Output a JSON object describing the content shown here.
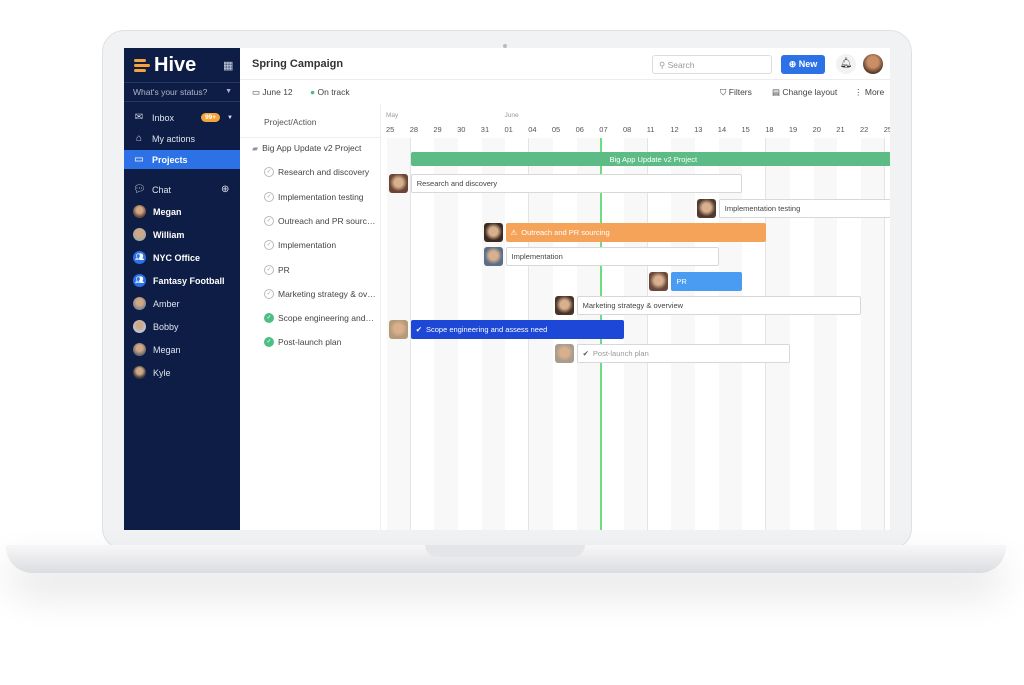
{
  "app": {
    "logo": "Hive",
    "status_placeholder": "What's your status?"
  },
  "sidebar": {
    "nav": [
      {
        "label": "Inbox",
        "icon": "mail-icon",
        "badge": "99+"
      },
      {
        "label": "My actions",
        "icon": "home-icon"
      },
      {
        "label": "Projects",
        "icon": "folder-icon",
        "active": true
      }
    ],
    "chat_label": "Chat",
    "chats": [
      {
        "label": "Megan",
        "bold": true,
        "color": "#6a4a3a"
      },
      {
        "label": "William",
        "bold": true,
        "color": "#a8a8a0"
      },
      {
        "label": "NYC Office",
        "bold": true,
        "group": true
      },
      {
        "label": "Fantasy Football",
        "bold": true,
        "group": true
      },
      {
        "label": "Amber",
        "color": "#8a8a8a"
      },
      {
        "label": "Bobby",
        "color": "#b9c6d6"
      },
      {
        "label": "Megan",
        "color": "#6e6e6e"
      },
      {
        "label": "Kyle",
        "color": "#3a3a3a"
      }
    ]
  },
  "header": {
    "title": "Spring Campaign",
    "search_placeholder": "Search",
    "new_label": "New"
  },
  "subheader": {
    "date": "June 12",
    "status": "On track",
    "filters": "Filters",
    "change_layout": "Change layout",
    "more": "More"
  },
  "table": {
    "column_header": "Project/Action"
  },
  "timeline": {
    "months": [
      {
        "label": "May",
        "col": 0
      },
      {
        "label": "June",
        "col": 5
      }
    ],
    "days": [
      "25",
      "28",
      "29",
      "30",
      "31",
      "01",
      "04",
      "05",
      "06",
      "07",
      "08",
      "11",
      "12",
      "13",
      "14",
      "15",
      "18",
      "19",
      "20",
      "21",
      "22",
      "25"
    ],
    "colors": {
      "green": "#5dbb86",
      "orange": "#f6a35a",
      "blue": "#4a9cf2",
      "darkblue": "#1d47d6"
    }
  },
  "rows": [
    {
      "label": "Big App Update v2 Project",
      "type": "project",
      "bar": {
        "start": 1,
        "end": 22,
        "style": "green",
        "label": "Big App Update v2 Project"
      }
    },
    {
      "label": "Research and discovery",
      "done": false,
      "bar": {
        "start": 1,
        "end": 15,
        "style": "white",
        "label": "Research and discovery",
        "avatar": "#6b4636"
      }
    },
    {
      "label": "Implementation testing",
      "done": false,
      "bar": {
        "start": 14,
        "end": 22,
        "style": "white",
        "label": "Implementation testing",
        "avatar": "#4e3a30"
      }
    },
    {
      "label": "Outreach and PR sourcing",
      "done": false,
      "bar": {
        "start": 5,
        "end": 16,
        "style": "orange",
        "label": "Outreach and PR sourcing",
        "avatar": "#3b2a22",
        "warning": true
      }
    },
    {
      "label": "Implementation",
      "done": false,
      "bar": {
        "start": 5,
        "end": 14,
        "style": "white",
        "label": "Implementation",
        "avatar": "#5a6e86"
      }
    },
    {
      "label": "PR",
      "done": false,
      "bar": {
        "start": 12,
        "end": 15,
        "style": "blue",
        "label": "PR",
        "avatar": "#6b4a3c"
      }
    },
    {
      "label": "Marketing strategy & overview",
      "done": false,
      "bar": {
        "start": 8,
        "end": 20,
        "style": "white",
        "label": "Marketing strategy & overview",
        "avatar": "#4a342a"
      }
    },
    {
      "label": "Scope engineering and assess need",
      "done": true,
      "bar": {
        "start": 1,
        "end": 10,
        "style": "darkblue",
        "label": "Scope engineering and assess need",
        "avatar": "#b39a78",
        "check": true
      }
    },
    {
      "label": "Post-launch plan",
      "done": true,
      "bar": {
        "start": 8,
        "end": 17,
        "style": "white",
        "label": "Post-launch plan",
        "avatar": "#a89c8c",
        "check": true,
        "muted": true
      }
    }
  ]
}
